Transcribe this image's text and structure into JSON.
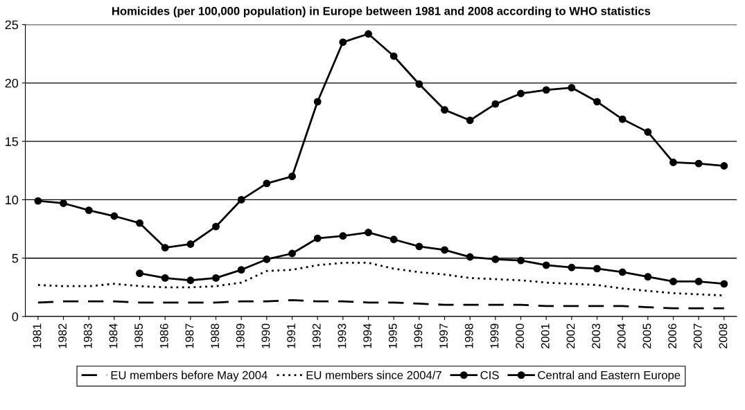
{
  "chart_data": {
    "type": "line",
    "title": "Homicides (per 100,000 population) in Europe between 1981 and 2008 according to WHO statistics",
    "categories": [
      "1981",
      "1982",
      "1983",
      "1984",
      "1985",
      "1986",
      "1987",
      "1988",
      "1989",
      "1990",
      "1991",
      "1992",
      "1993",
      "1994",
      "1995",
      "1996",
      "1997",
      "1998",
      "1999",
      "2000",
      "2001",
      "2002",
      "2003",
      "2004",
      "2005",
      "2006",
      "2007",
      "2008"
    ],
    "ylim": [
      0,
      25
    ],
    "yticks": [
      0,
      5,
      10,
      15,
      20,
      25
    ],
    "grid": "y",
    "legend": "bottom",
    "series": [
      {
        "name": "EU members before May 2004",
        "color": "#000000",
        "line_style": "dashed",
        "marker": "none",
        "values": [
          1.2,
          1.3,
          1.3,
          1.3,
          1.2,
          1.2,
          1.2,
          1.2,
          1.3,
          1.3,
          1.4,
          1.3,
          1.3,
          1.2,
          1.2,
          1.1,
          1.0,
          1.0,
          1.0,
          1.0,
          0.9,
          0.9,
          0.9,
          0.9,
          0.8,
          0.7,
          0.7,
          0.7
        ]
      },
      {
        "name": "EU members since 2004/7",
        "color": "#000000",
        "line_style": "dotted",
        "marker": "none",
        "values": [
          2.7,
          2.6,
          2.6,
          2.8,
          2.6,
          2.5,
          2.5,
          2.6,
          2.9,
          3.9,
          4.0,
          4.4,
          4.6,
          4.6,
          4.1,
          3.8,
          3.6,
          3.3,
          3.2,
          3.1,
          2.9,
          2.8,
          2.7,
          2.4,
          2.2,
          2.0,
          1.9,
          1.8
        ]
      },
      {
        "name": "CIS",
        "color": "#000000",
        "line_style": "solid",
        "marker": "circle",
        "values": [
          9.9,
          9.7,
          9.1,
          8.6,
          8.0,
          5.9,
          6.2,
          7.7,
          10.0,
          11.4,
          12.0,
          18.4,
          23.5,
          24.2,
          22.3,
          19.9,
          17.7,
          16.8,
          18.2,
          19.1,
          19.4,
          19.6,
          18.4,
          16.9,
          15.8,
          13.2,
          13.1,
          12.9
        ]
      },
      {
        "name": "Central and Eastern Europe",
        "color": "#000000",
        "line_style": "solid",
        "marker": "circle",
        "values": [
          null,
          null,
          null,
          null,
          3.7,
          3.3,
          3.1,
          3.3,
          4.0,
          4.9,
          5.4,
          6.7,
          6.9,
          7.2,
          6.6,
          6.0,
          5.7,
          5.1,
          4.9,
          4.8,
          4.4,
          4.2,
          4.1,
          3.8,
          3.4,
          3.0,
          3.0,
          2.8
        ]
      }
    ]
  }
}
